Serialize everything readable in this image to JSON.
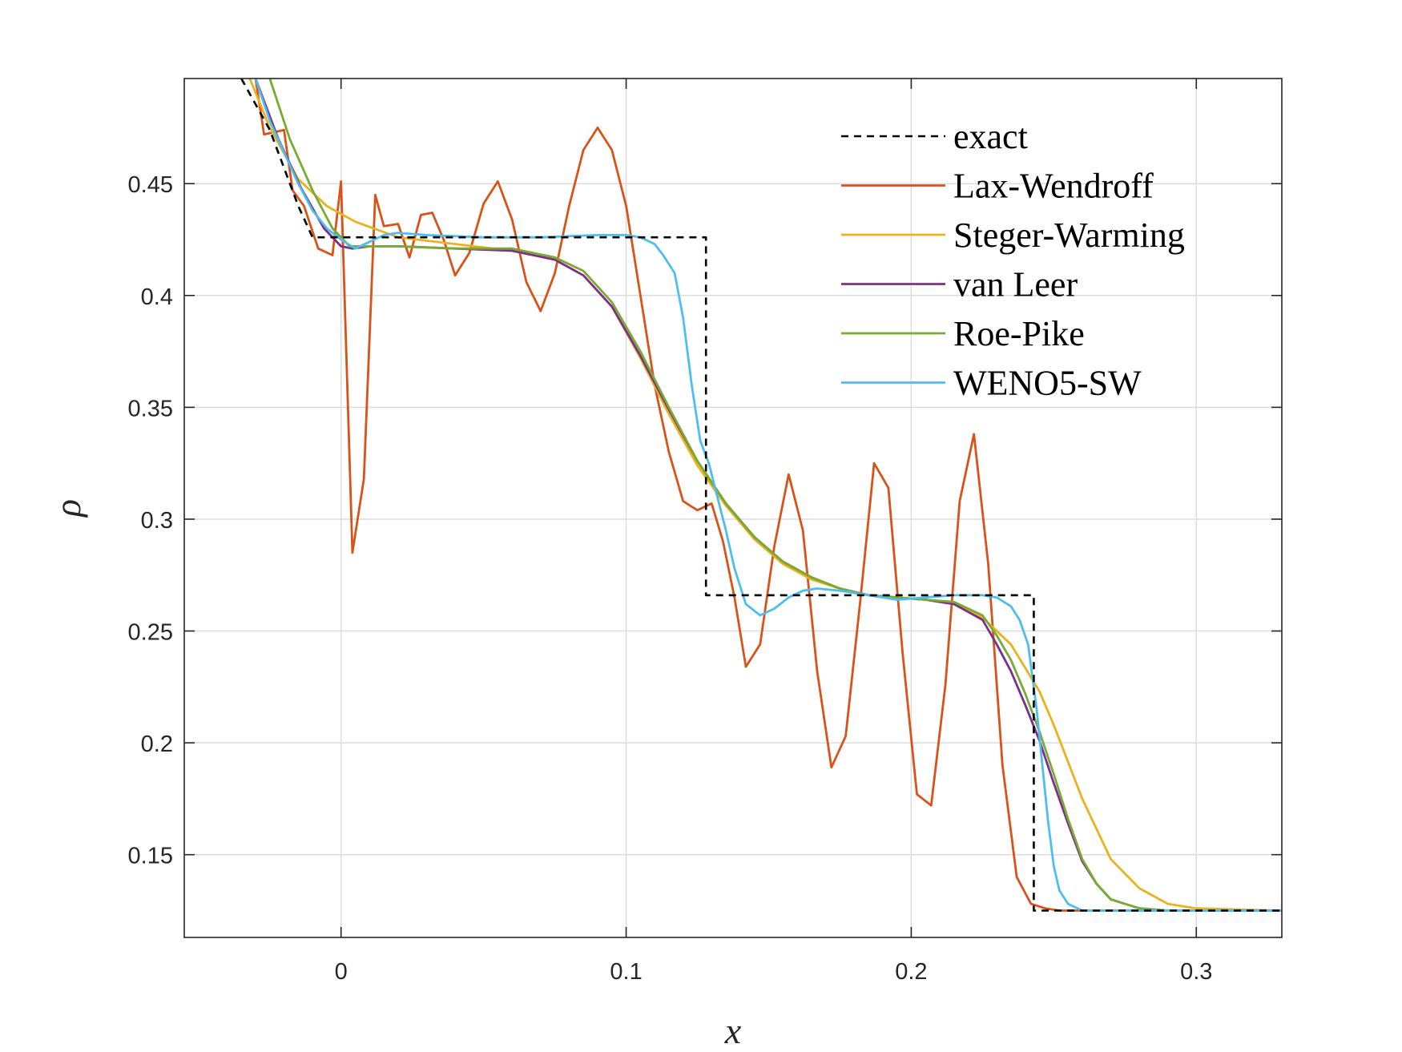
{
  "chart_data": {
    "type": "line",
    "title": "",
    "xlabel": "x",
    "ylabel": "ρ",
    "xlim": [
      -0.055,
      0.33
    ],
    "ylim": [
      0.113,
      0.497
    ],
    "xticks": [
      0,
      0.1,
      0.2,
      0.3
    ],
    "xtick_labels": [
      "0",
      "0.1",
      "0.2",
      "0.3"
    ],
    "yticks": [
      0.15,
      0.2,
      0.25,
      0.3,
      0.35,
      0.4,
      0.45
    ],
    "ytick_labels": [
      "0.15",
      "0.2",
      "0.25",
      "0.3",
      "0.35",
      "0.4",
      "0.45"
    ],
    "grid": true,
    "legend_position": "top-right",
    "series": [
      {
        "name": "exact",
        "color": "#000000",
        "dash": "dashed",
        "x": [
          -0.035,
          -0.025,
          -0.015,
          -0.01,
          0.0,
          0.128,
          0.128,
          0.13,
          0.2,
          0.243,
          0.243,
          0.245,
          0.33
        ],
        "y": [
          0.497,
          0.474,
          0.44,
          0.426,
          0.426,
          0.426,
          0.266,
          0.266,
          0.266,
          0.266,
          0.125,
          0.125,
          0.125
        ]
      },
      {
        "name": "Lax-Wendroff",
        "color": "#d95319",
        "x": [
          -0.03,
          -0.027,
          -0.02,
          -0.017,
          -0.013,
          -0.008,
          -0.003,
          0.0,
          0.004,
          0.008,
          0.012,
          0.015,
          0.02,
          0.024,
          0.028,
          0.032,
          0.036,
          0.04,
          0.045,
          0.05,
          0.055,
          0.06,
          0.065,
          0.07,
          0.075,
          0.08,
          0.085,
          0.09,
          0.095,
          0.1,
          0.105,
          0.11,
          0.115,
          0.12,
          0.125,
          0.13,
          0.134,
          0.138,
          0.142,
          0.147,
          0.152,
          0.157,
          0.162,
          0.167,
          0.172,
          0.177,
          0.182,
          0.187,
          0.192,
          0.197,
          0.202,
          0.207,
          0.212,
          0.217,
          0.222,
          0.227,
          0.232,
          0.237,
          0.242,
          0.247,
          0.252,
          0.257,
          0.262,
          0.27,
          0.28,
          0.3,
          0.33
        ],
        "y": [
          0.497,
          0.472,
          0.474,
          0.447,
          0.44,
          0.421,
          0.418,
          0.451,
          0.285,
          0.318,
          0.445,
          0.431,
          0.432,
          0.417,
          0.436,
          0.437,
          0.425,
          0.409,
          0.419,
          0.441,
          0.451,
          0.434,
          0.406,
          0.393,
          0.41,
          0.44,
          0.465,
          0.475,
          0.465,
          0.44,
          0.4,
          0.36,
          0.33,
          0.308,
          0.304,
          0.307,
          0.29,
          0.265,
          0.234,
          0.244,
          0.288,
          0.32,
          0.295,
          0.232,
          0.189,
          0.203,
          0.262,
          0.325,
          0.314,
          0.24,
          0.177,
          0.172,
          0.226,
          0.308,
          0.338,
          0.28,
          0.19,
          0.14,
          0.128,
          0.126,
          0.125,
          0.125,
          0.125,
          0.125,
          0.125,
          0.125,
          0.125
        ]
      },
      {
        "name": "Steger-Warming",
        "color": "#edb120",
        "x": [
          -0.032,
          -0.025,
          -0.015,
          -0.005,
          0.005,
          0.02,
          0.04,
          0.06,
          0.075,
          0.085,
          0.095,
          0.105,
          0.115,
          0.125,
          0.135,
          0.145,
          0.155,
          0.165,
          0.175,
          0.185,
          0.195,
          0.205,
          0.215,
          0.225,
          0.235,
          0.245,
          0.25,
          0.26,
          0.27,
          0.28,
          0.29,
          0.3,
          0.33
        ],
        "y": [
          0.497,
          0.475,
          0.452,
          0.44,
          0.433,
          0.426,
          0.423,
          0.42,
          0.416,
          0.409,
          0.395,
          0.372,
          0.347,
          0.324,
          0.306,
          0.291,
          0.28,
          0.273,
          0.269,
          0.266,
          0.265,
          0.264,
          0.262,
          0.256,
          0.244,
          0.223,
          0.208,
          0.175,
          0.148,
          0.135,
          0.128,
          0.126,
          0.125
        ]
      },
      {
        "name": "van Leer",
        "color": "#7e2f8e",
        "x": [
          -0.03,
          -0.022,
          -0.014,
          -0.006,
          0.0,
          0.004,
          0.01,
          0.02,
          0.04,
          0.06,
          0.075,
          0.085,
          0.095,
          0.105,
          0.115,
          0.125,
          0.135,
          0.145,
          0.155,
          0.165,
          0.175,
          0.185,
          0.195,
          0.205,
          0.215,
          0.225,
          0.23,
          0.235,
          0.24,
          0.245,
          0.25,
          0.255,
          0.26,
          0.265,
          0.27,
          0.28,
          0.29,
          0.33
        ],
        "y": [
          0.497,
          0.47,
          0.448,
          0.43,
          0.422,
          0.421,
          0.422,
          0.422,
          0.421,
          0.42,
          0.416,
          0.409,
          0.395,
          0.373,
          0.349,
          0.326,
          0.307,
          0.292,
          0.281,
          0.274,
          0.269,
          0.266,
          0.265,
          0.264,
          0.262,
          0.255,
          0.244,
          0.232,
          0.217,
          0.201,
          0.182,
          0.164,
          0.147,
          0.137,
          0.13,
          0.126,
          0.125,
          0.125
        ]
      },
      {
        "name": "Roe-Pike",
        "color": "#77ac30",
        "x": [
          -0.025,
          -0.018,
          -0.01,
          -0.003,
          0.003,
          0.01,
          0.02,
          0.04,
          0.06,
          0.075,
          0.085,
          0.095,
          0.105,
          0.115,
          0.125,
          0.135,
          0.145,
          0.155,
          0.165,
          0.175,
          0.185,
          0.195,
          0.205,
          0.215,
          0.225,
          0.23,
          0.235,
          0.24,
          0.245,
          0.25,
          0.255,
          0.26,
          0.265,
          0.27,
          0.28,
          0.29,
          0.33
        ],
        "y": [
          0.497,
          0.47,
          0.447,
          0.43,
          0.422,
          0.422,
          0.422,
          0.421,
          0.421,
          0.417,
          0.411,
          0.397,
          0.375,
          0.35,
          0.326,
          0.307,
          0.292,
          0.281,
          0.274,
          0.269,
          0.266,
          0.265,
          0.264,
          0.263,
          0.257,
          0.248,
          0.237,
          0.222,
          0.205,
          0.186,
          0.166,
          0.148,
          0.137,
          0.13,
          0.126,
          0.125,
          0.125
        ]
      },
      {
        "name": "WENO5-SW",
        "color": "#4dbeee",
        "x": [
          -0.03,
          -0.025,
          -0.02,
          -0.015,
          -0.01,
          -0.005,
          0.0,
          0.005,
          0.01,
          0.015,
          0.02,
          0.03,
          0.05,
          0.07,
          0.09,
          0.1,
          0.105,
          0.11,
          0.113,
          0.117,
          0.12,
          0.123,
          0.126,
          0.129,
          0.132,
          0.135,
          0.138,
          0.142,
          0.147,
          0.152,
          0.157,
          0.162,
          0.167,
          0.175,
          0.185,
          0.195,
          0.205,
          0.215,
          0.225,
          0.23,
          0.235,
          0.238,
          0.241,
          0.244,
          0.246,
          0.248,
          0.25,
          0.252,
          0.255,
          0.26,
          0.33
        ],
        "y": [
          0.497,
          0.478,
          0.464,
          0.45,
          0.438,
          0.43,
          0.425,
          0.421,
          0.424,
          0.427,
          0.428,
          0.427,
          0.426,
          0.426,
          0.427,
          0.427,
          0.426,
          0.423,
          0.418,
          0.41,
          0.39,
          0.36,
          0.335,
          0.325,
          0.31,
          0.295,
          0.278,
          0.262,
          0.257,
          0.26,
          0.265,
          0.268,
          0.269,
          0.268,
          0.266,
          0.264,
          0.265,
          0.266,
          0.266,
          0.265,
          0.261,
          0.255,
          0.244,
          0.215,
          0.19,
          0.165,
          0.145,
          0.134,
          0.128,
          0.125,
          0.125
        ]
      }
    ]
  }
}
